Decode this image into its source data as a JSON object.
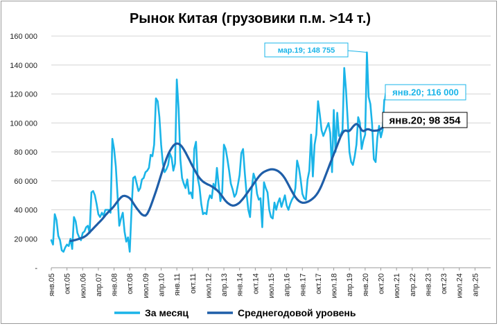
{
  "chart_data": {
    "type": "line",
    "title": "Рынок Китая (грузовики п.м. >14 т.)",
    "ylim": [
      0,
      160000
    ],
    "grid": true,
    "y_ticks": [
      "-",
      "20 000",
      "40 000",
      "60 000",
      "80 000",
      "100 000",
      "120 000",
      "140 000",
      "160 000"
    ],
    "x_start": "2005-01",
    "x_ticks": [
      "янв.05",
      "окт.05",
      "июл.06",
      "апр.07",
      "янв.08",
      "окт.08",
      "июл.09",
      "апр.10",
      "янв.11",
      "окт.11",
      "июл.12",
      "апр.13",
      "янв.14",
      "окт.14",
      "июл.15",
      "апр.16",
      "янв.17",
      "окт.17",
      "июл.18",
      "апр.19",
      "янв.20",
      "окт.20",
      "июл.21",
      "апр.22",
      "янв.23",
      "окт.23",
      "июл.24",
      "апр.25"
    ],
    "legend_placement": "bottom",
    "colors": {
      "monthly": "#1ab4e8",
      "average": "#1f5ea8"
    },
    "series": [
      {
        "name": "За месяц",
        "values": [
          19000,
          16000,
          37000,
          33000,
          22000,
          19000,
          12000,
          11000,
          14000,
          16000,
          15000,
          20000,
          13000,
          35000,
          32000,
          24000,
          21000,
          19000,
          24000,
          25000,
          28000,
          29000,
          24000,
          52000,
          53000,
          50000,
          44000,
          37000,
          35000,
          38000,
          36000,
          40000,
          40000,
          40000,
          38000,
          89000,
          82000,
          70000,
          50000,
          29000,
          34000,
          38000,
          25000,
          18000,
          21000,
          11000,
          39000,
          62000,
          63000,
          58000,
          53000,
          55000,
          61000,
          62000,
          66000,
          67000,
          69000,
          78000,
          77000,
          85000,
          117000,
          115000,
          104000,
          85000,
          72000,
          66000,
          68000,
          71000,
          79000,
          76000,
          67000,
          72000,
          130000,
          110000,
          75000,
          62000,
          58000,
          55000,
          61000,
          51000,
          52000,
          48000,
          82000,
          87000,
          62000,
          56000,
          44000,
          37000,
          38000,
          37000,
          46000,
          50000,
          48000,
          58000,
          54000,
          69000,
          57000,
          46000,
          52000,
          85000,
          82000,
          75000,
          67000,
          58000,
          54000,
          49000,
          51000,
          57000,
          64000,
          79000,
          82000,
          65000,
          51000,
          40000,
          35000,
          55000,
          65000,
          61000,
          51000,
          47000,
          48000,
          28000,
          59000,
          55000,
          52000,
          40000,
          35000,
          34000,
          45000,
          40000,
          45000,
          48000,
          42000,
          46000,
          50000,
          43000,
          40000,
          44000,
          47000,
          49000,
          55000,
          74000,
          69000,
          61000,
          51000,
          48000,
          47000,
          61000,
          67000,
          92000,
          63000,
          85000,
          92000,
          115000,
          106000,
          95000,
          91000,
          94000,
          97000,
          100000,
          93000,
          66000,
          109000,
          80000,
          107000,
          91000,
          92000,
          95000,
          138000,
          123000,
          102000,
          80000,
          73000,
          71000,
          77000,
          85000,
          104000,
          100000,
          82000,
          88000,
          92000,
          148755,
          118000,
          113000,
          99000,
          75000,
          73000,
          90000,
          98000,
          90000,
          95000,
          116000
        ],
        "annotation": "мар.19;  148 755",
        "last_label": "янв.20;  116 000"
      },
      {
        "name": "Среднегодовой уровень",
        "x_offset": 11,
        "values": [
          18500,
          18700,
          18900,
          19200,
          19600,
          20000,
          20400,
          20800,
          21400,
          22200,
          23300,
          24500,
          25800,
          27000,
          28300,
          29500,
          30800,
          32000,
          33300,
          34700,
          36200,
          37500,
          38800,
          40000,
          41200,
          42600,
          44200,
          45800,
          47300,
          48600,
          49500,
          49700,
          49400,
          48800,
          48000,
          46600,
          44700,
          42800,
          41000,
          39500,
          38000,
          36800,
          36100,
          36000,
          37200,
          39500,
          42500,
          45800,
          49200,
          52800,
          56500,
          60300,
          64200,
          68000,
          71700,
          75100,
          78200,
          80600,
          82600,
          84300,
          85300,
          85800,
          85600,
          84800,
          83500,
          81700,
          79600,
          77300,
          74900,
          72500,
          70200,
          68000,
          65800,
          63700,
          62000,
          60600,
          59500,
          58700,
          58000,
          57400,
          56900,
          56200,
          55400,
          54600,
          53600,
          52400,
          51000,
          49300,
          47600,
          46100,
          44900,
          44000,
          43300,
          42900,
          43000,
          43400,
          44100,
          45000,
          46300,
          47700,
          49300,
          51000,
          52700,
          54400,
          56000,
          57800,
          59600,
          61300,
          62900,
          64300,
          65400,
          66200,
          66800,
          67300,
          67700,
          68000,
          68000,
          67800,
          67400,
          66800,
          65900,
          64800,
          63400,
          61700,
          59600,
          57300,
          55000,
          52800,
          50700,
          48800,
          47300,
          46100,
          45300,
          44900,
          44900,
          45100,
          45500,
          46100,
          46900,
          47800,
          48900,
          50300,
          52000,
          54200,
          56800,
          59700,
          62800,
          65900,
          69000,
          72200,
          75300,
          78400,
          81500,
          84600,
          87700,
          90700,
          93100,
          94500,
          94800,
          94300,
          94500,
          95800,
          97400,
          98700,
          99300,
          98700,
          97000,
          95000,
          94300,
          94900,
          95600,
          95600,
          95200,
          94700,
          94600,
          94700,
          94800,
          95200,
          95900,
          96800,
          97700,
          98354
        ],
        "last_label": "янв.20;  98 354"
      }
    ]
  }
}
